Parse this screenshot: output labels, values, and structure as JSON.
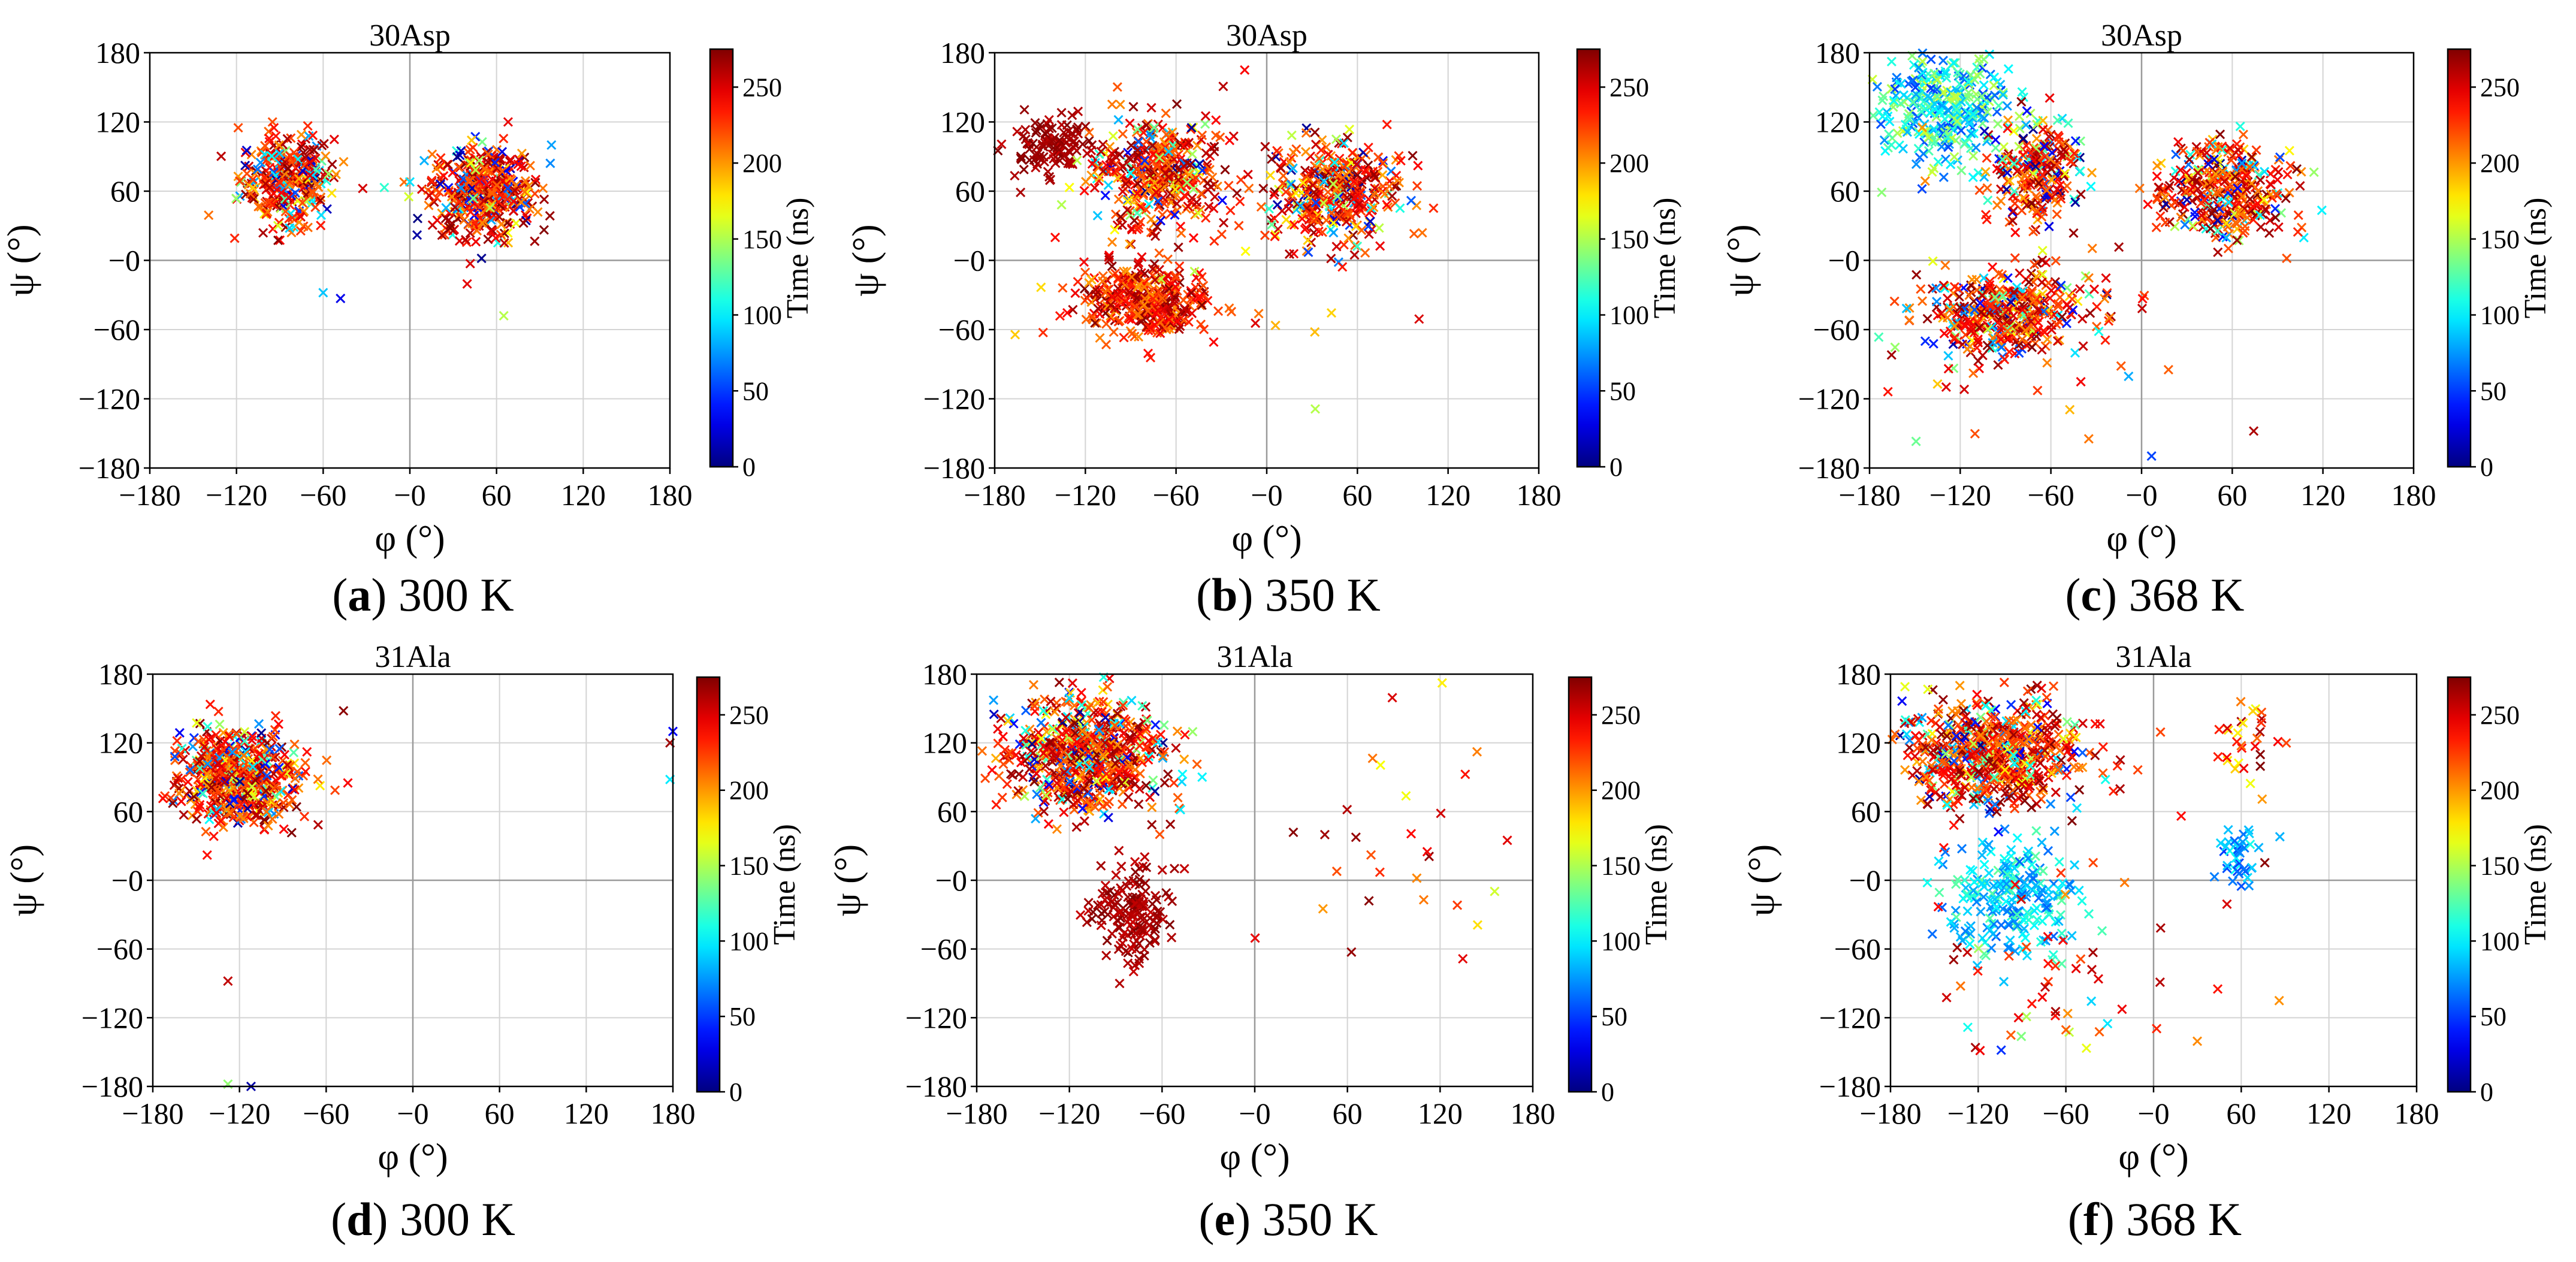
{
  "figure": {
    "x_symbol": "φ (°)",
    "y_symbol": "ψ (°)",
    "colorbar_label": "Time (ns)",
    "colorbar_ticks": [
      0,
      50,
      100,
      150,
      200,
      250
    ],
    "axis_ticks": [
      -180,
      -120,
      -60,
      0,
      60,
      120,
      180
    ],
    "tick_labels": [
      "−180",
      "−120",
      "−60",
      "−0",
      "60",
      "120",
      "180"
    ]
  },
  "panels": [
    {
      "id": "a",
      "residue": "30Asp",
      "temperature": "300 K",
      "caption_letter": "(a)"
    },
    {
      "id": "b",
      "residue": "30Asp",
      "temperature": "350 K",
      "caption_letter": "(b)"
    },
    {
      "id": "c",
      "residue": "30Asp",
      "temperature": "368 K",
      "caption_letter": "(c)"
    },
    {
      "id": "d",
      "residue": "31Ala",
      "temperature": "300 K",
      "caption_letter": "(d)"
    },
    {
      "id": "e",
      "residue": "31Ala",
      "temperature": "350 K",
      "caption_letter": "(e)"
    },
    {
      "id": "f",
      "residue": "31Ala",
      "temperature": "368 K",
      "caption_letter": "(f)"
    }
  ],
  "chart_data": [
    {
      "panel": "a",
      "type": "scatter",
      "title": "30Asp",
      "xlabel": "φ (°)",
      "ylabel": "ψ (°)",
      "xlim": [
        -180,
        180
      ],
      "ylim": [
        -180,
        180
      ],
      "color_label": "Time (ns)",
      "clim": [
        0,
        275
      ],
      "marker": "x",
      "grid": true,
      "series": [
        {
          "name": "left cluster",
          "center": [
            -85,
            70
          ],
          "spread": [
            16,
            20
          ],
          "count": 320,
          "time_range": [
            0,
            275
          ]
        },
        {
          "name": "right cluster",
          "center": [
            50,
            60
          ],
          "spread": [
            18,
            20
          ],
          "count": 420,
          "time_range": [
            0,
            275
          ]
        },
        {
          "name": "outliers",
          "points": [
            [
              -60,
              -28
            ],
            [
              -48,
              -33
            ],
            [
              65,
              -48
            ],
            [
              5,
              22
            ],
            [
              0,
              68
            ],
            [
              68,
              120
            ],
            [
              98,
              100
            ]
          ],
          "time_range": [
            0,
            275
          ]
        }
      ]
    },
    {
      "panel": "b",
      "type": "scatter",
      "title": "30Asp",
      "xlabel": "φ (°)",
      "ylabel": "ψ (°)",
      "xlim": [
        -180,
        180
      ],
      "ylim": [
        -180,
        180
      ],
      "color_label": "Time (ns)",
      "clim": [
        0,
        275
      ],
      "marker": "x",
      "grid": true,
      "series": [
        {
          "name": "upper-left cluster",
          "center": [
            -142,
            98
          ],
          "spread": [
            15,
            12
          ],
          "count": 110,
          "time_range": [
            255,
            275
          ]
        },
        {
          "name": "upper-middle cluster",
          "center": [
            -72,
            75
          ],
          "spread": [
            20,
            24
          ],
          "count": 380,
          "time_range": [
            0,
            275
          ]
        },
        {
          "name": "right cluster",
          "center": [
            45,
            60
          ],
          "spread": [
            22,
            22
          ],
          "count": 380,
          "time_range": [
            0,
            275
          ]
        },
        {
          "name": "lower cluster",
          "center": [
            -80,
            -35
          ],
          "spread": [
            22,
            16
          ],
          "count": 330,
          "time_range": [
            200,
            275
          ]
        },
        {
          "name": "scattered",
          "center": [
            -60,
            30
          ],
          "spread": [
            60,
            70
          ],
          "count": 60,
          "time_range": [
            150,
            275
          ]
        }
      ]
    },
    {
      "panel": "c",
      "type": "scatter",
      "title": "30Asp",
      "xlabel": "φ (°)",
      "ylabel": "ψ (°)",
      "xlim": [
        -180,
        180
      ],
      "ylim": [
        -180,
        180
      ],
      "color_label": "Time (ns)",
      "clim": [
        0,
        275
      ],
      "marker": "x",
      "grid": true,
      "series": [
        {
          "name": "upper-left cluster",
          "center": [
            -130,
            130
          ],
          "spread": [
            22,
            25
          ],
          "count": 330,
          "time_range": [
            50,
            160
          ]
        },
        {
          "name": "upper-middle cluster",
          "center": [
            -70,
            80
          ],
          "spread": [
            15,
            22
          ],
          "count": 230,
          "time_range": [
            0,
            275
          ]
        },
        {
          "name": "right cluster",
          "center": [
            55,
            60
          ],
          "spread": [
            22,
            20
          ],
          "count": 340,
          "time_range": [
            0,
            275
          ]
        },
        {
          "name": "lower cluster",
          "center": [
            -90,
            -45
          ],
          "spread": [
            24,
            18
          ],
          "count": 380,
          "time_range": [
            0,
            275
          ]
        },
        {
          "name": "scattered",
          "center": [
            -100,
            -60
          ],
          "spread": [
            60,
            70
          ],
          "count": 80,
          "time_range": [
            0,
            275
          ]
        }
      ]
    },
    {
      "panel": "d",
      "type": "scatter",
      "title": "31Ala",
      "xlabel": "φ (°)",
      "ylabel": "ψ (°)",
      "xlim": [
        -180,
        180
      ],
      "ylim": [
        -180,
        180
      ],
      "color_label": "Time (ns)",
      "clim": [
        0,
        275
      ],
      "marker": "x",
      "grid": true,
      "series": [
        {
          "name": "main cluster",
          "center": [
            -120,
            90
          ],
          "spread": [
            20,
            20
          ],
          "count": 560,
          "time_range": [
            0,
            275
          ]
        },
        {
          "name": "outliers",
          "points": [
            [
              -128,
              -88
            ],
            [
              -128,
              -178
            ],
            [
              -112,
              -180
            ],
            [
              -48,
              148
            ],
            [
              -45,
              85
            ],
            [
              178,
              120
            ],
            [
              178,
              88
            ],
            [
              180,
              130
            ]
          ],
          "time_range": [
            0,
            275
          ]
        }
      ]
    },
    {
      "panel": "e",
      "type": "scatter",
      "title": "31Ala",
      "xlabel": "φ (°)",
      "ylabel": "ψ (°)",
      "xlim": [
        -180,
        180
      ],
      "ylim": [
        -180,
        180
      ],
      "color_label": "Time (ns)",
      "clim": [
        0,
        275
      ],
      "marker": "x",
      "grid": true,
      "series": [
        {
          "name": "main cluster",
          "center": [
            -110,
            110
          ],
          "spread": [
            26,
            24
          ],
          "count": 620,
          "time_range": [
            0,
            275
          ]
        },
        {
          "name": "lower cluster",
          "center": [
            -80,
            -30
          ],
          "spread": [
            14,
            20
          ],
          "count": 150,
          "time_range": [
            255,
            275
          ]
        },
        {
          "name": "scattered",
          "center": [
            80,
            40
          ],
          "spread": [
            40,
            60
          ],
          "count": 30,
          "time_range": [
            150,
            275
          ]
        }
      ]
    },
    {
      "panel": "f",
      "type": "scatter",
      "title": "31Ala",
      "xlabel": "φ (°)",
      "ylabel": "ψ (°)",
      "xlim": [
        -180,
        180
      ],
      "ylim": [
        -180,
        180
      ],
      "color_label": "Time (ns)",
      "clim": [
        0,
        275
      ],
      "marker": "x",
      "grid": true,
      "series": [
        {
          "name": "upper cluster",
          "center": [
            -110,
            110
          ],
          "spread": [
            30,
            24
          ],
          "count": 640,
          "time_range": [
            0,
            275
          ]
        },
        {
          "name": "middle cluster",
          "center": [
            -95,
            -15
          ],
          "spread": [
            22,
            25
          ],
          "count": 220,
          "time_range": [
            60,
            130
          ]
        },
        {
          "name": "right-middle cluster",
          "center": [
            60,
            20
          ],
          "spread": [
            8,
            15
          ],
          "count": 40,
          "time_range": [
            50,
            110
          ]
        },
        {
          "name": "right-upper cluster",
          "center": [
            65,
            120
          ],
          "spread": [
            10,
            25
          ],
          "count": 30,
          "time_range": [
            160,
            275
          ]
        },
        {
          "name": "scattered",
          "center": [
            -60,
            -80
          ],
          "spread": [
            60,
            50
          ],
          "count": 60,
          "time_range": [
            0,
            275
          ]
        }
      ]
    }
  ]
}
